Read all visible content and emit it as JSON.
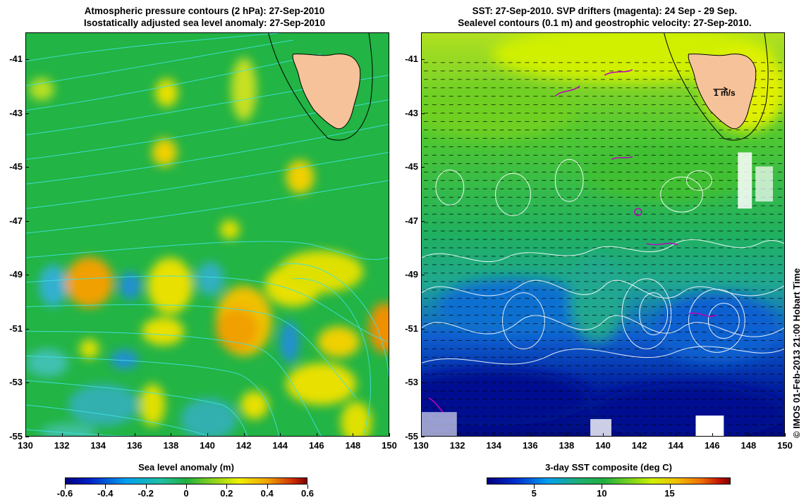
{
  "left_panel": {
    "title_line1": "Atmospheric pressure contours (2 hPa): 27-Sep-2010",
    "title_line2": "Isostatically adjusted sea level anomaly: 27-Sep-2010",
    "colorbar_title": "Sea level anomaly (m)",
    "colorbar_ticks": [
      "-0.6",
      "-0.4",
      "-0.2",
      "0",
      "0.2",
      "0.4",
      "0.6"
    ]
  },
  "right_panel": {
    "title_line1": "SST: 27-Sep-2010. SVP drifters (magenta): 24 Sep - 29 Sep.",
    "title_line2": "Sealevel contours (0.1 m) and geostrophic velocity: 27-Sep-2010.",
    "colorbar_title": "3-day SST composite (deg C)",
    "colorbar_ticks": [
      "5",
      "10",
      "15"
    ],
    "velocity_scale_label": "1 m/s"
  },
  "axes": {
    "y_ticks": [
      "-41",
      "-43",
      "-45",
      "-47",
      "-49",
      "-51",
      "-53",
      "-55"
    ],
    "x_ticks": [
      "130",
      "132",
      "134",
      "136",
      "138",
      "140",
      "142",
      "144",
      "146",
      "148",
      "150"
    ],
    "lon_range": [
      130,
      150
    ],
    "lat_range": [
      -55,
      -40
    ]
  },
  "credit": "© IMOS 01-Feb-2013 21:00 Hobart Time",
  "colors": {
    "land": "#f5c29a",
    "sla_background": "#22b444",
    "sst_warm": "#a0e020",
    "sst_cold": "#0010a0",
    "pressure_contour": "#40e0e0",
    "sealevel_contour": "#ffffff",
    "drifter": "#c000c0"
  }
}
